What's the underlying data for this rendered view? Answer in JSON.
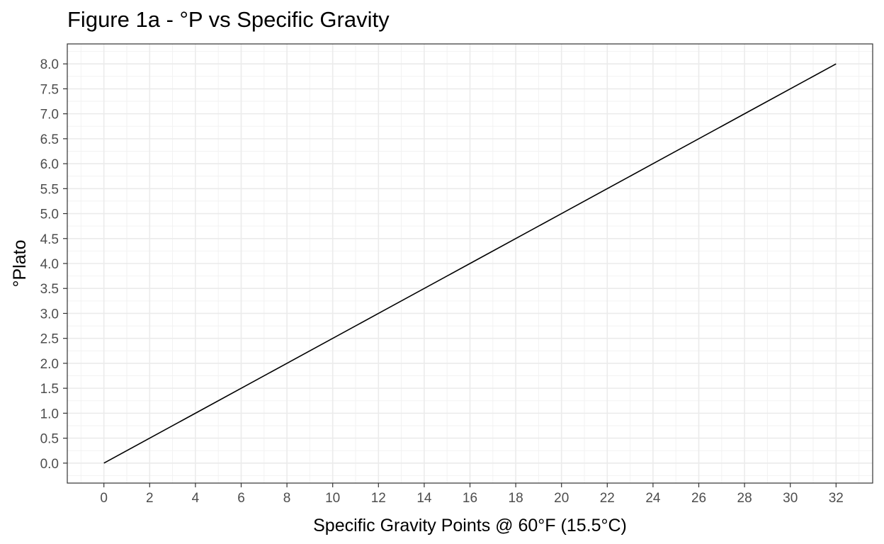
{
  "chart_data": {
    "type": "line",
    "title": "Figure 1a - °P vs Specific Gravity",
    "xlabel": "Specific Gravity Points @ 60°F (15.5°C)",
    "ylabel": "°Plato",
    "xlim": [
      -1.6,
      33.6
    ],
    "ylim": [
      -0.4,
      8.4
    ],
    "x_ticks": [
      0,
      2,
      4,
      6,
      8,
      10,
      12,
      14,
      16,
      18,
      20,
      22,
      24,
      26,
      28,
      30,
      32
    ],
    "y_ticks": [
      0.0,
      0.5,
      1.0,
      1.5,
      2.0,
      2.5,
      3.0,
      3.5,
      4.0,
      4.5,
      5.0,
      5.5,
      6.0,
      6.5,
      7.0,
      7.5,
      8.0
    ],
    "x_tick_labels": [
      "0",
      "2",
      "4",
      "6",
      "8",
      "10",
      "12",
      "14",
      "16",
      "18",
      "20",
      "22",
      "24",
      "26",
      "28",
      "30",
      "32"
    ],
    "y_tick_labels": [
      "0.0",
      "0.5",
      "1.0",
      "1.5",
      "2.0",
      "2.5",
      "3.0",
      "3.5",
      "4.0",
      "4.5",
      "5.0",
      "5.5",
      "6.0",
      "6.5",
      "7.0",
      "7.5",
      "8.0"
    ],
    "grid": true,
    "series": [
      {
        "color": "#000000",
        "x": [
          0,
          4,
          8,
          12,
          16,
          20,
          24,
          28,
          32
        ],
        "y": [
          0.0,
          1.0,
          2.0,
          3.0,
          4.0,
          5.0,
          6.0,
          7.0,
          8.0
        ]
      }
    ]
  }
}
